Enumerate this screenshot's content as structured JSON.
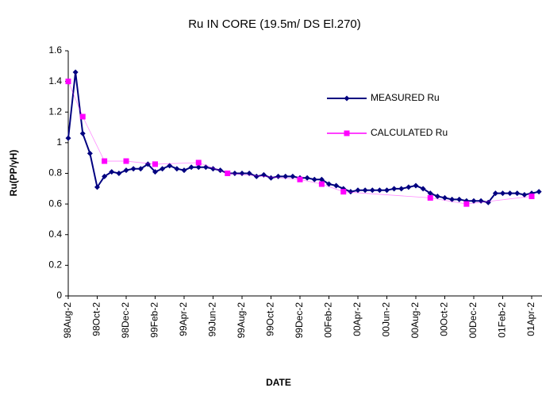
{
  "chart_data": {
    "type": "line",
    "title": "Ru IN CORE (19.5m/ DS El.270)",
    "x_label": "DATE",
    "y_label": "Ru(PP/γH)",
    "categories": [
      "98Aug-2",
      null,
      null,
      null,
      "98Oct-2",
      null,
      null,
      null,
      "98Dec-2",
      null,
      null,
      null,
      "99Feb-2",
      null,
      null,
      null,
      "99Apr-2",
      null,
      null,
      null,
      "99Jun-2",
      null,
      null,
      null,
      "99Aug-2",
      null,
      null,
      null,
      "99Oct-2",
      null,
      null,
      null,
      "99Dec-2",
      null,
      null,
      null,
      "00Feb-2",
      null,
      null,
      null,
      "00Apr-2",
      null,
      null,
      null,
      "00Jun-2",
      null,
      null,
      null,
      "00Aug-2",
      null,
      null,
      null,
      "00Oct-2",
      null,
      null,
      null,
      "00Dec-2",
      null,
      null,
      null,
      "01Feb-2",
      null,
      null,
      null,
      "01Apr-2",
      null
    ],
    "series": [
      {
        "name": "MEASURED Ru",
        "color": "#000080",
        "marker": "diamond",
        "values": [
          1.03,
          1.46,
          1.06,
          0.93,
          0.71,
          0.78,
          0.81,
          0.8,
          0.82,
          0.83,
          0.83,
          0.86,
          0.81,
          0.83,
          0.85,
          0.83,
          0.82,
          0.84,
          0.84,
          0.84,
          0.83,
          0.82,
          0.8,
          0.8,
          0.8,
          0.8,
          0.78,
          0.79,
          0.77,
          0.78,
          0.78,
          0.78,
          0.77,
          0.77,
          0.76,
          0.76,
          0.73,
          0.72,
          0.7,
          0.68,
          0.69,
          0.69,
          0.69,
          0.69,
          0.69,
          0.7,
          0.7,
          0.71,
          0.72,
          0.7,
          0.67,
          0.65,
          0.64,
          0.63,
          0.63,
          0.62,
          0.62,
          0.62,
          0.61,
          0.67,
          0.67,
          0.67,
          0.67,
          0.66,
          0.67,
          0.68
        ]
      },
      {
        "name": "CALCULATED Ru",
        "color": "#ff00ff",
        "marker": "square",
        "values": [
          1.4,
          null,
          1.17,
          null,
          null,
          0.88,
          null,
          null,
          0.88,
          null,
          null,
          null,
          0.86,
          null,
          null,
          null,
          null,
          null,
          0.87,
          null,
          null,
          null,
          0.8,
          null,
          null,
          null,
          null,
          null,
          null,
          null,
          null,
          null,
          0.76,
          null,
          null,
          0.73,
          null,
          null,
          0.68,
          null,
          null,
          null,
          null,
          null,
          null,
          null,
          null,
          null,
          null,
          null,
          0.64,
          null,
          null,
          null,
          null,
          0.6,
          null,
          null,
          null,
          null,
          null,
          null,
          null,
          null,
          0.65,
          null
        ]
      }
    ],
    "ylim": [
      0,
      1.6
    ],
    "yticks": [
      0,
      0.2,
      0.4,
      0.6,
      0.8,
      1,
      1.2,
      1.4,
      1.6
    ],
    "legend": "right"
  }
}
